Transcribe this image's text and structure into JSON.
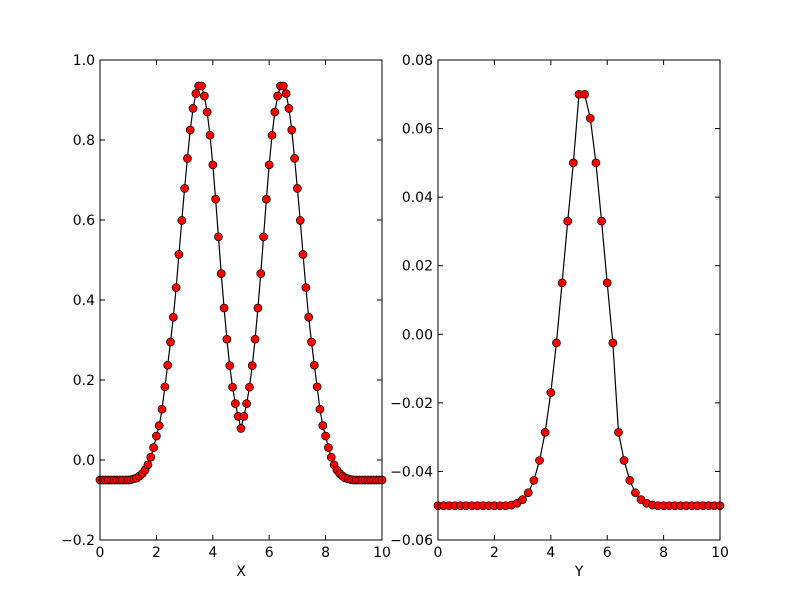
{
  "chart_data": [
    {
      "type": "line",
      "xlabel": "X",
      "ylabel": "",
      "xlim": [
        0,
        10
      ],
      "ylim": [
        -0.2,
        1.0
      ],
      "xticks": [
        0,
        2,
        4,
        6,
        8,
        10
      ],
      "xtick_labels": [
        "0",
        "2",
        "4",
        "6",
        "8",
        "10"
      ],
      "yticks": [
        -0.2,
        0.0,
        0.2,
        0.4,
        0.6,
        0.8,
        1.0
      ],
      "ytick_labels": [
        "−0.2",
        "0.0",
        "0.2",
        "0.4",
        "0.6",
        "0.8",
        "1.0"
      ],
      "line_color": "#000000",
      "marker_color": "#ff0000",
      "series": [
        {
          "x": [
            0,
            0.1,
            0.2,
            0.3,
            0.4,
            0.5,
            0.6,
            0.7,
            0.8,
            0.9,
            1.0,
            1.1,
            1.2,
            1.3,
            1.4,
            1.5,
            1.6,
            1.7,
            1.8,
            1.9,
            2.0,
            2.1,
            2.2,
            2.3,
            2.4,
            2.5,
            2.6,
            2.7,
            2.8,
            2.9,
            3.0,
            3.1,
            3.2,
            3.3,
            3.4,
            3.5,
            3.6,
            3.7,
            3.8,
            3.9,
            4.0,
            4.1,
            4.2,
            4.3,
            4.4,
            4.5,
            4.6,
            4.7,
            4.8,
            4.9,
            5.0,
            5.1,
            5.2,
            5.3,
            5.4,
            5.5,
            5.6,
            5.7,
            5.8,
            5.9,
            6.0,
            6.1,
            6.2,
            6.3,
            6.4,
            6.5,
            6.6,
            6.7,
            6.8,
            6.9,
            7.0,
            7.1,
            7.2,
            7.3,
            7.4,
            7.5,
            7.6,
            7.7,
            7.8,
            7.9,
            8.0,
            8.1,
            8.2,
            8.3,
            8.4,
            8.5,
            8.6,
            8.7,
            8.8,
            8.9,
            9.0,
            9.1,
            9.2,
            9.3,
            9.4,
            9.5,
            9.6,
            9.7,
            9.8,
            9.9,
            10.0
          ],
          "y": [
            -0.05,
            -0.05,
            -0.05,
            -0.05,
            -0.05,
            -0.05,
            -0.05,
            -0.05,
            -0.05,
            -0.05,
            -0.05,
            -0.049,
            -0.047,
            -0.045,
            -0.04,
            -0.034,
            -0.025,
            -0.012,
            0.007,
            0.031,
            0.06,
            0.086,
            0.127,
            0.183,
            0.237,
            0.295,
            0.357,
            0.431,
            0.514,
            0.599,
            0.679,
            0.754,
            0.825,
            0.879,
            0.916,
            0.935,
            0.935,
            0.91,
            0.87,
            0.812,
            0.738,
            0.652,
            0.558,
            0.466,
            0.38,
            0.302,
            0.236,
            0.182,
            0.141,
            0.109,
            0.079,
            0.109,
            0.141,
            0.182,
            0.236,
            0.302,
            0.38,
            0.466,
            0.558,
            0.652,
            0.738,
            0.812,
            0.87,
            0.91,
            0.935,
            0.935,
            0.916,
            0.879,
            0.825,
            0.754,
            0.679,
            0.599,
            0.514,
            0.431,
            0.357,
            0.295,
            0.237,
            0.183,
            0.127,
            0.086,
            0.06,
            0.031,
            0.007,
            -0.012,
            -0.025,
            -0.034,
            -0.04,
            -0.045,
            -0.047,
            -0.049,
            -0.05,
            -0.05,
            -0.05,
            -0.05,
            -0.05,
            -0.05,
            -0.05,
            -0.05,
            -0.05,
            -0.05,
            -0.05
          ]
        }
      ]
    },
    {
      "type": "line",
      "xlabel": "Y",
      "ylabel": "",
      "xlim": [
        0,
        10
      ],
      "ylim": [
        -0.06,
        0.08
      ],
      "xticks": [
        0,
        2,
        4,
        6,
        8,
        10
      ],
      "xtick_labels": [
        "0",
        "2",
        "4",
        "6",
        "8",
        "10"
      ],
      "yticks": [
        -0.06,
        -0.04,
        -0.02,
        0.0,
        0.02,
        0.04,
        0.06,
        0.08
      ],
      "ytick_labels": [
        "−0.06",
        "−0.04",
        "−0.02",
        "0.00",
        "0.02",
        "0.04",
        "0.06",
        "0.08"
      ],
      "line_color": "#000000",
      "marker_color": "#ff0000",
      "series": [
        {
          "x": [
            0,
            0.2,
            0.4,
            0.6,
            0.8,
            1.0,
            1.2,
            1.4,
            1.6,
            1.8,
            2.0,
            2.2,
            2.4,
            2.6,
            2.8,
            3.0,
            3.2,
            3.4,
            3.6,
            3.8,
            4.0,
            4.2,
            4.4,
            4.6,
            4.8,
            5.0,
            5.2,
            5.4,
            5.6,
            5.8,
            6.0,
            6.2,
            6.4,
            6.6,
            6.8,
            7.0,
            7.2,
            7.4,
            7.6,
            7.8,
            8.0,
            8.2,
            8.4,
            8.6,
            8.8,
            9.0,
            9.2,
            9.4,
            9.6,
            9.8,
            10.0
          ],
          "y": [
            -0.05,
            -0.05,
            -0.05,
            -0.05,
            -0.05,
            -0.05,
            -0.05,
            -0.05,
            -0.05,
            -0.05,
            -0.05,
            -0.05,
            -0.05,
            -0.0498,
            -0.0493,
            -0.0482,
            -0.0462,
            -0.0426,
            -0.0368,
            -0.0286,
            -0.017,
            -0.0025,
            0.015,
            0.033,
            0.05,
            0.07,
            0.07,
            0.063,
            0.05,
            0.033,
            0.015,
            -0.0025,
            -0.0286,
            -0.0368,
            -0.0426,
            -0.0462,
            -0.0482,
            -0.0493,
            -0.0498,
            -0.05,
            -0.05,
            -0.05,
            -0.05,
            -0.05,
            -0.05,
            -0.05,
            -0.05,
            -0.05,
            -0.05,
            -0.05,
            -0.05
          ]
        }
      ]
    }
  ]
}
